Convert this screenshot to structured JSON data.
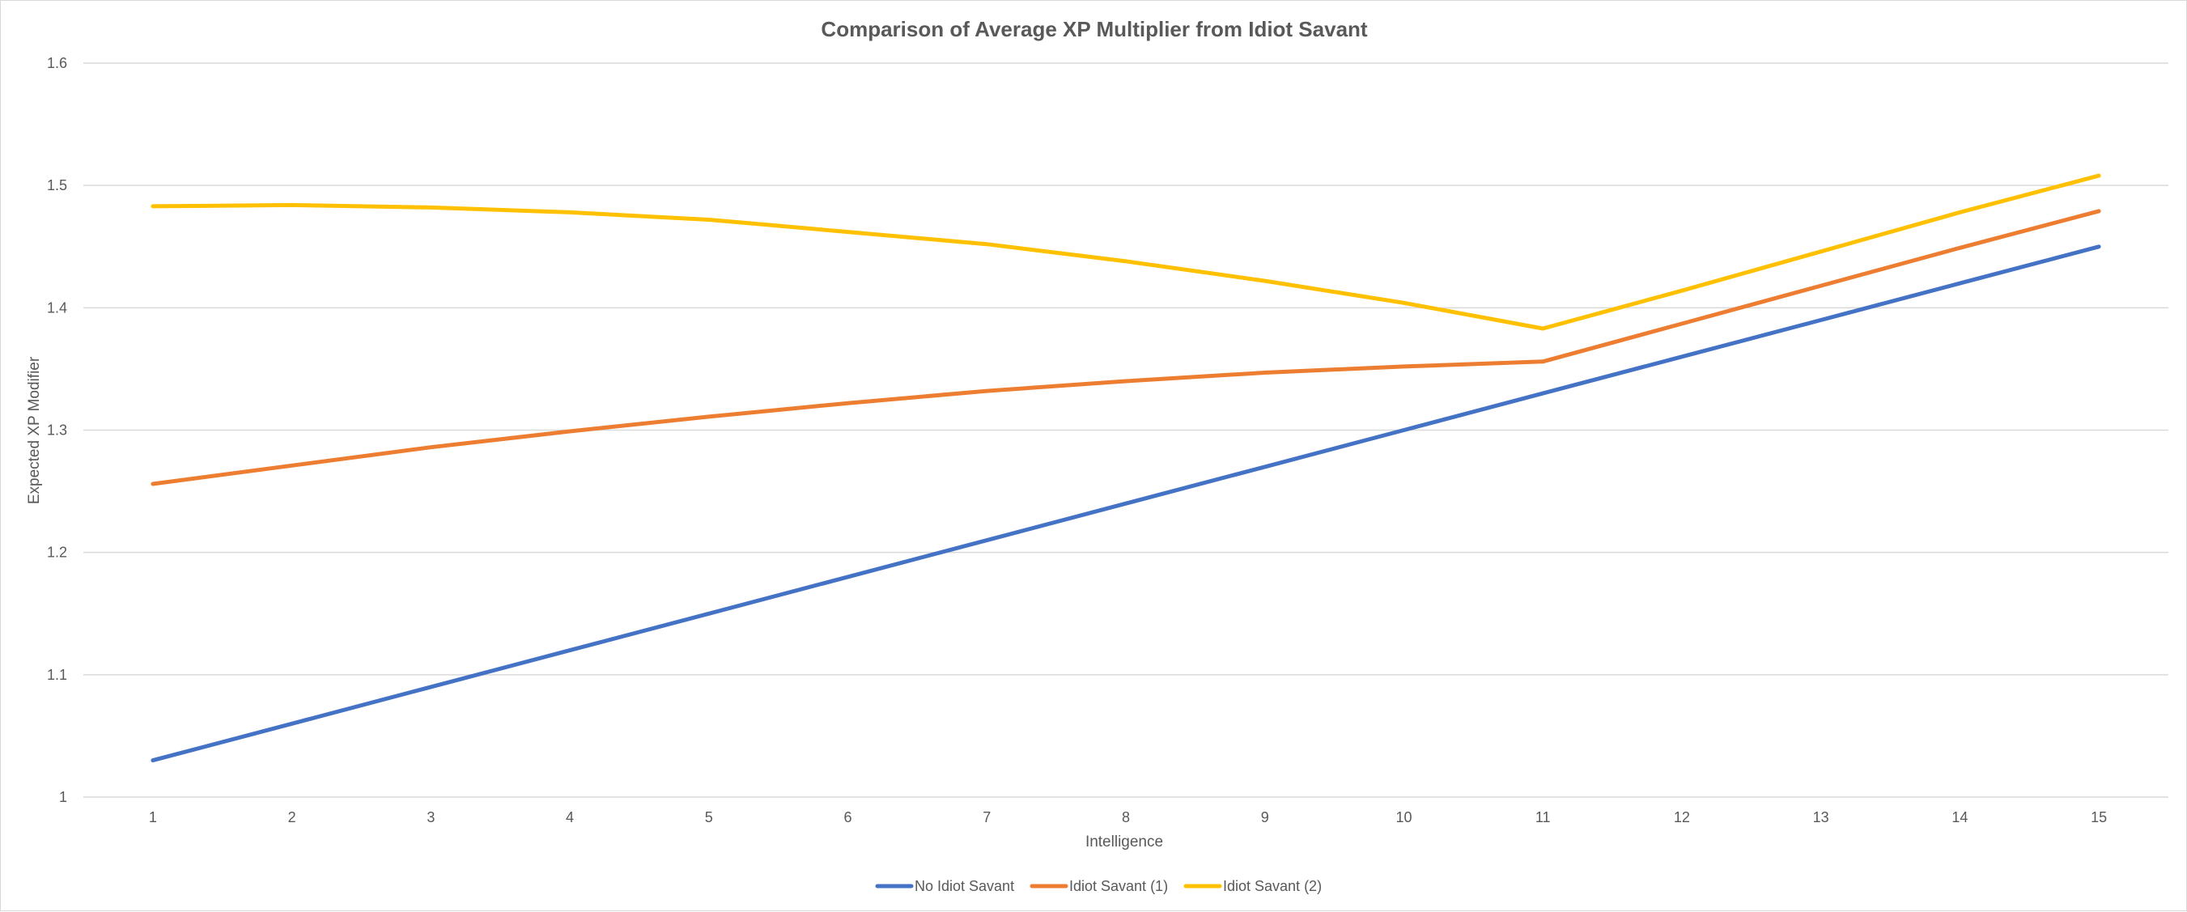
{
  "chart_data": {
    "type": "line",
    "title": "Comparison of Average XP Multiplier from Idiot Savant",
    "xlabel": "Intelligence",
    "ylabel": "Expected XP Modifier",
    "x": [
      1,
      2,
      3,
      4,
      5,
      6,
      7,
      8,
      9,
      10,
      11,
      12,
      13,
      14,
      15
    ],
    "x_tick_labels": [
      "1",
      "2",
      "3",
      "4",
      "5",
      "6",
      "7",
      "8",
      "9",
      "10",
      "11",
      "12",
      "13",
      "14",
      "15"
    ],
    "ylim": [
      1,
      1.6
    ],
    "y_ticks": [
      1,
      1.1,
      1.2,
      1.3,
      1.4,
      1.5,
      1.6
    ],
    "y_tick_labels": [
      "1",
      "1.1",
      "1.2",
      "1.3",
      "1.4",
      "1.5",
      "1.6"
    ],
    "grid": "horizontal",
    "legend_position": "bottom",
    "series": [
      {
        "name": "No Idiot Savant",
        "color": "#4472C4",
        "values": [
          1.03,
          1.06,
          1.09,
          1.12,
          1.15,
          1.18,
          1.21,
          1.24,
          1.27,
          1.3,
          1.33,
          1.36,
          1.39,
          1.42,
          1.45
        ]
      },
      {
        "name": "Idiot Savant (1)",
        "color": "#ED7D31",
        "values": [
          1.256,
          1.271,
          1.286,
          1.299,
          1.311,
          1.322,
          1.332,
          1.34,
          1.347,
          1.352,
          1.356,
          1.387,
          1.418,
          1.449,
          1.479
        ]
      },
      {
        "name": "Idiot Savant (2)",
        "color": "#FFC000",
        "values": [
          1.483,
          1.484,
          1.482,
          1.478,
          1.472,
          1.462,
          1.452,
          1.438,
          1.422,
          1.404,
          1.383,
          1.414,
          1.446,
          1.478,
          1.508
        ]
      }
    ]
  }
}
